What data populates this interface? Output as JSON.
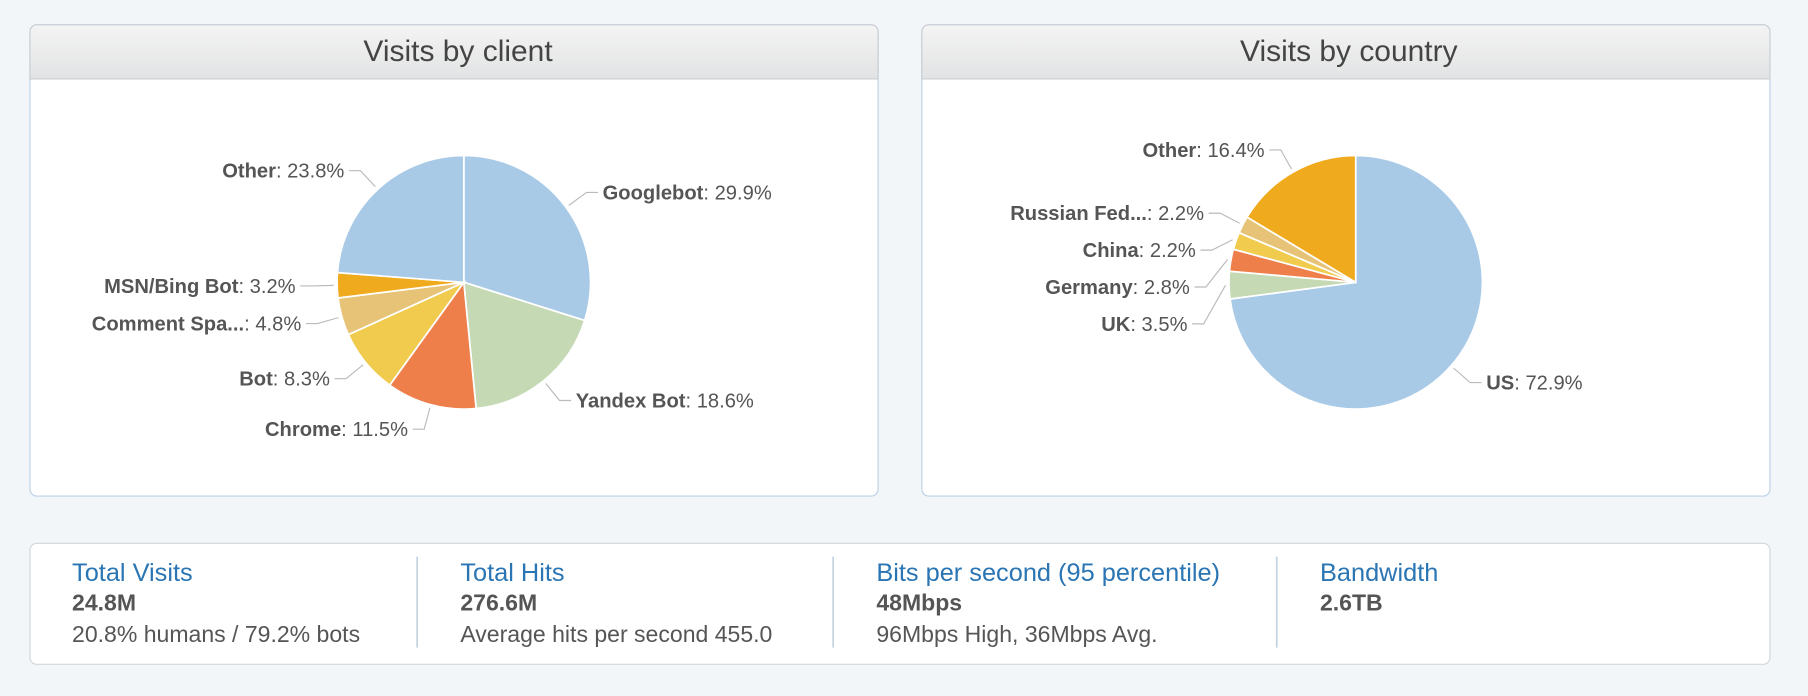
{
  "chart_data": [
    {
      "type": "pie",
      "title": "Visits by client",
      "categories": [
        "Googlebot",
        "Yandex Bot",
        "Chrome",
        "Bot",
        "Comment Spa...",
        "MSN/Bing Bot",
        "Other"
      ],
      "values": [
        29.9,
        18.6,
        11.5,
        8.3,
        4.8,
        3.2,
        23.8
      ],
      "value_labels": [
        ": 29.9%",
        ": 18.6%",
        ": 11.5%",
        ": 8.3%",
        ": 4.8%",
        ": 3.2%",
        ": 23.8%"
      ],
      "colors": [
        "#a9cae6",
        "#c5d9b4",
        "#ee7f4b",
        "#f0cb4e",
        "#e6c376",
        "#f0aa1e",
        "#a9cae6"
      ]
    },
    {
      "type": "pie",
      "title": "Visits by country",
      "categories": [
        "US",
        "UK",
        "Germany",
        "China",
        "Russian Fed...",
        "Other"
      ],
      "values": [
        72.9,
        3.5,
        2.8,
        2.2,
        2.2,
        16.4
      ],
      "value_labels": [
        ": 72.9%",
        ": 3.5%",
        ": 2.8%",
        ": 2.2%",
        ": 2.2%",
        ": 16.4%"
      ],
      "colors": [
        "#a9cae6",
        "#c5d9b4",
        "#ee7f4b",
        "#f0cb4e",
        "#e6c376",
        "#f0aa1e"
      ]
    }
  ],
  "stats": [
    {
      "title": "Total Visits",
      "value": "24.8M",
      "detail": "20.8% humans / 79.2% bots"
    },
    {
      "title": "Total Hits",
      "value": "276.6M",
      "detail": "Average hits per second 455.0"
    },
    {
      "title": "Bits per second (95 percentile)",
      "value": "48Mbps",
      "detail": "96Mbps High, 36Mbps Avg."
    },
    {
      "title": "Bandwidth",
      "value": "2.6TB"
    }
  ]
}
